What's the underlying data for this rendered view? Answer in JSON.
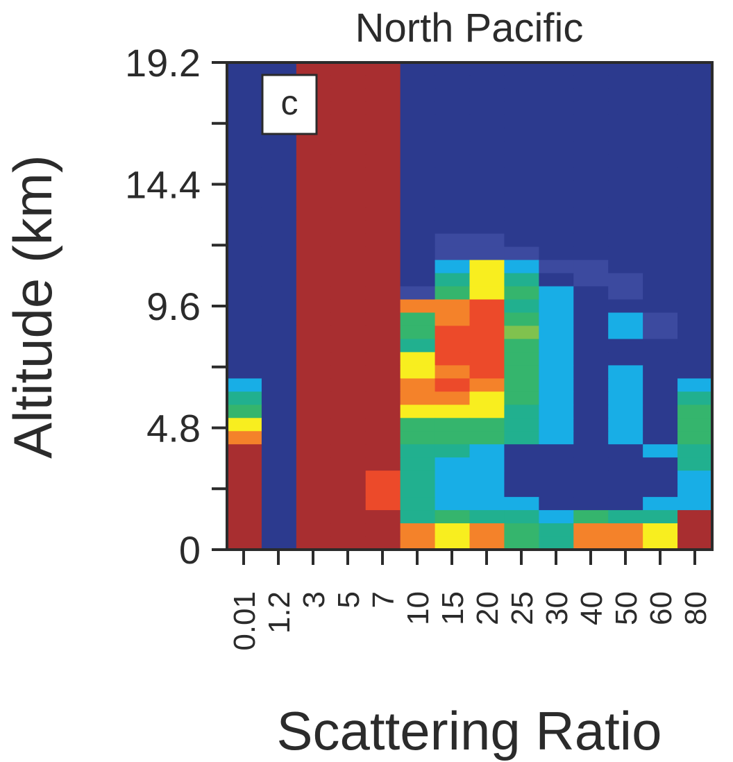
{
  "chart_data": {
    "type": "heatmap",
    "title": "North Pacific",
    "panel_label": "c",
    "xlabel": "Scattering Ratio",
    "ylabel": "Altitude (km)",
    "x_tick_labels": [
      "0.01",
      "1.2",
      "3",
      "5",
      "7",
      "10",
      "15",
      "20",
      "25",
      "30",
      "40",
      "50",
      "60",
      "80"
    ],
    "y_tick_labels": [
      "19.2",
      "14.4",
      "9.6",
      "4.8",
      "0"
    ],
    "y_tick_values": [
      19.2,
      14.4,
      9.6,
      4.8,
      0
    ],
    "ylim": [
      0,
      19.2
    ],
    "colorscale_order": [
      "navy",
      "blue",
      "lightblue",
      "teal",
      "green",
      "lightgreen",
      "yellow",
      "orange",
      "red",
      "darkred"
    ],
    "colors": {
      "navy": "#2c3a8e",
      "blue": "#3c4a9f",
      "lightblue": "#18aee6",
      "teal": "#21b08f",
      "green": "#35b56d",
      "lightgreen": "#80c24e",
      "yellow": "#f8ee1f",
      "orange": "#f4822a",
      "red": "#ec4a2a",
      "darkred": "#a82e30"
    },
    "rows_top_to_bottom": [
      "B B D D D B B B B B B B B B",
      "B B D D D B B B B B B B B B",
      "B B D D D B B B B B B B B B",
      "B B D D D B B B B B B B B B",
      "B B D D D B B B B B B B B B",
      "B B D D D B B B B B B B B B",
      "B B D D D B B B B B B B B B",
      "B B D D D B B B B B B B B B",
      "B B D D D B B B B B B B B B",
      "B B D D D B B B B B B B B B",
      "B B D D D B B B B B B B B B",
      "B B D D D B B B B B B B B B",
      "B B D D D B B B B B B B B B",
      "B B D D D B b b B B B B B B",
      "B B D D D B b b b B B B B B",
      "B B D D D B L C L b b B B B",
      "B B D D D B T Y T B b b B B",
      "B B D D D b G Y G L B b B B",
      "B B D D D O O R T L B B B B",
      "B B D D D G O R G L B L b B",
      "B B D D D G R R g L B L b B",
      "B B D D D T R R G L B B B B",
      "B B D D D Y R R G L B B B B",
      "B B D D D Y O R G L B L B B",
      "L B D D D O R O G L B L B L",
      "T B D D D O O Y G L B L B T",
      "G B D D D Y Y Y T L B L B G",
      "Y B D D D G G G T L B L B G",
      "O B D D D G G G T L B L B G",
      "D B D D D T T L B B B B L T",
      "D B D D D T L L B B B B B T",
      "D B D D R T L L B B B B B L",
      "D B D D R T L L B B B B B L",
      "D B D D R T L L L B B B L L",
      "D B D D D T G T T L G T T D",
      "D B D D D O Y O G T O O Y D",
      "D B D D D O Y O G T O O Y D"
    ],
    "legend_codes": {
      "B": "navy",
      "b": "blue",
      "L": "lightblue",
      "T": "teal",
      "G": "green",
      "g": "lightgreen",
      "Y": "yellow",
      "O": "orange",
      "R": "red",
      "D": "darkred",
      "C": "yellow"
    },
    "grid": false
  }
}
